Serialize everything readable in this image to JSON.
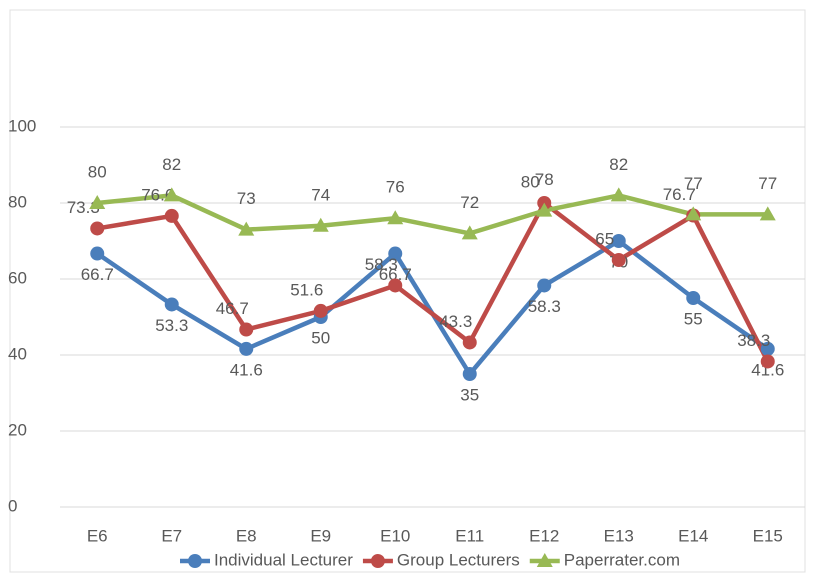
{
  "chart_data": {
    "type": "line",
    "categories": [
      "E6",
      "E7",
      "E8",
      "E9",
      "E10",
      "E11",
      "E12",
      "E13",
      "E14",
      "E15"
    ],
    "series": [
      {
        "name": "Individual Lecturer",
        "color": "#4a7ebb",
        "marker": "circle",
        "values": [
          66.7,
          53.3,
          41.6,
          50,
          66.7,
          35,
          58.3,
          70,
          55,
          41.6
        ]
      },
      {
        "name": "Group Lecturers",
        "color": "#be4b48",
        "marker": "circle",
        "values": [
          73.3,
          76.6,
          46.7,
          51.6,
          58.3,
          43.3,
          80,
          65,
          76.7,
          38.3
        ]
      },
      {
        "name": "Paperrater.com",
        "color": "#98b954",
        "marker": "triangle",
        "values": [
          80,
          82,
          73,
          74,
          76,
          72,
          78,
          82,
          77,
          77
        ]
      }
    ],
    "ylim": [
      0,
      100
    ],
    "yticks": [
      0,
      20,
      40,
      60,
      80,
      100
    ],
    "grid": true,
    "legend": "bottom"
  }
}
